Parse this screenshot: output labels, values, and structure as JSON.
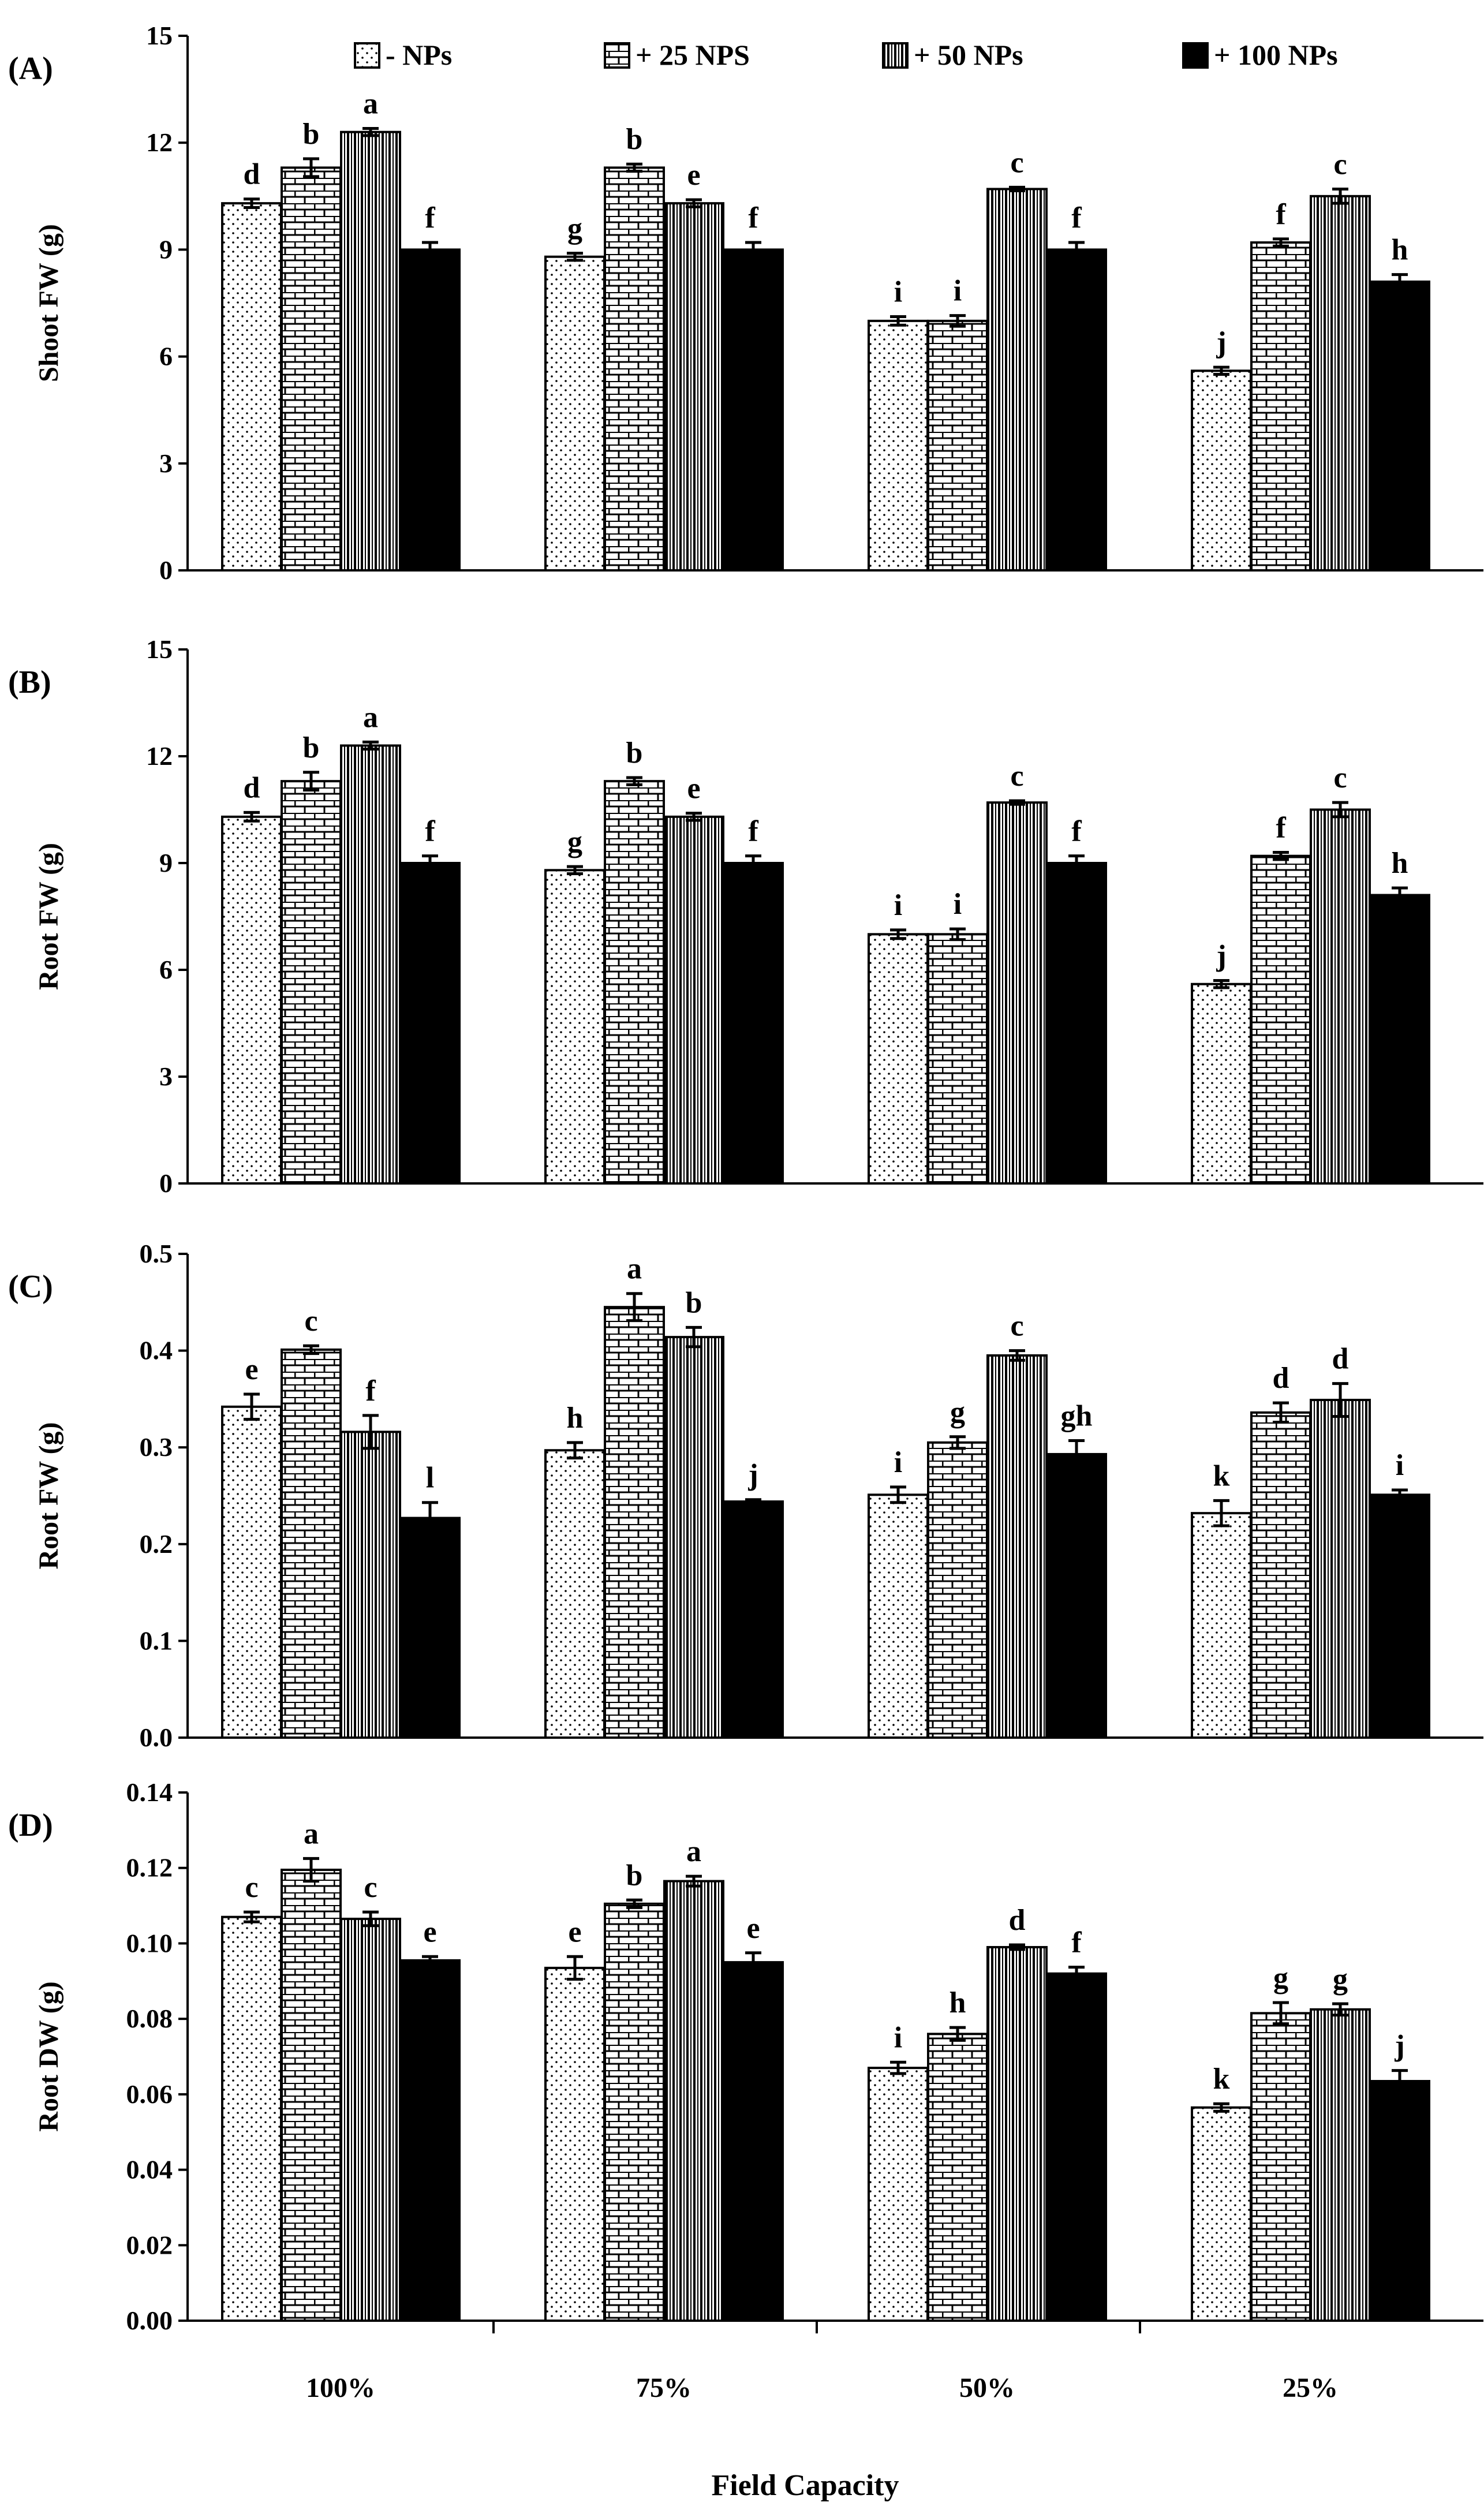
{
  "legend": {
    "items": [
      {
        "label": "- NPs",
        "pattern": "dots"
      },
      {
        "label": "+ 25 NPS",
        "pattern": "bricks"
      },
      {
        "label": "+ 50 NPs",
        "pattern": "vlines"
      },
      {
        "label": "+ 100 NPs",
        "pattern": "solid"
      }
    ]
  },
  "xaxis": {
    "title": "Field Capacity",
    "categories": [
      "100%",
      "75%",
      "50%",
      "25%"
    ]
  },
  "chart_data": [
    {
      "type": "bar",
      "panel": "(A)",
      "ylabel": "Shoot FW (g)",
      "ylim": [
        0,
        15
      ],
      "yticks": [
        "0",
        "3",
        "6",
        "9",
        "12",
        "15"
      ],
      "categories": [
        "100%",
        "75%",
        "50%",
        "25%"
      ],
      "series": [
        {
          "name": "- NPs",
          "values": [
            10.3,
            8.8,
            7.0,
            5.6
          ],
          "errors": [
            0.12,
            0.1,
            0.12,
            0.1
          ],
          "letters": [
            "d",
            "g",
            "i",
            "j"
          ]
        },
        {
          "name": "+ 25 NPS",
          "values": [
            11.3,
            11.3,
            7.0,
            9.2
          ],
          "errors": [
            0.25,
            0.1,
            0.15,
            0.1
          ],
          "letters": [
            "b",
            "b",
            "i",
            "f"
          ]
        },
        {
          "name": "+ 50 NPs",
          "values": [
            12.3,
            10.3,
            10.7,
            10.5
          ],
          "errors": [
            0.1,
            0.1,
            0.05,
            0.2
          ],
          "letters": [
            "a",
            "e",
            "c",
            "c"
          ]
        },
        {
          "name": "+ 100 NPs",
          "values": [
            9.0,
            9.0,
            9.0,
            8.1
          ],
          "errors": [
            0.2,
            0.2,
            0.2,
            0.2
          ],
          "letters": [
            "f",
            "f",
            "f",
            "h"
          ]
        }
      ]
    },
    {
      "type": "bar",
      "panel": "(B)",
      "ylabel": "Root FW (g)",
      "ylim": [
        0,
        15
      ],
      "yticks": [
        "0",
        "3",
        "6",
        "9",
        "12",
        "15"
      ],
      "categories": [
        "100%",
        "75%",
        "50%",
        "25%"
      ],
      "series": [
        {
          "name": "- NPs",
          "values": [
            10.3,
            8.8,
            7.0,
            5.6
          ],
          "errors": [
            0.12,
            0.1,
            0.12,
            0.1
          ],
          "letters": [
            "d",
            "g",
            "i",
            "j"
          ]
        },
        {
          "name": "+ 25 NPS",
          "values": [
            11.3,
            11.3,
            7.0,
            9.2
          ],
          "errors": [
            0.25,
            0.1,
            0.15,
            0.1
          ],
          "letters": [
            "b",
            "b",
            "i",
            "f"
          ]
        },
        {
          "name": "+ 50 NPs",
          "values": [
            12.3,
            10.3,
            10.7,
            10.5
          ],
          "errors": [
            0.1,
            0.1,
            0.05,
            0.2
          ],
          "letters": [
            "a",
            "e",
            "c",
            "c"
          ]
        },
        {
          "name": "+ 100 NPs",
          "values": [
            9.0,
            9.0,
            9.0,
            8.1
          ],
          "errors": [
            0.2,
            0.2,
            0.2,
            0.2
          ],
          "letters": [
            "f",
            "f",
            "f",
            "h"
          ]
        }
      ]
    },
    {
      "type": "bar",
      "panel": "(C)",
      "ylabel": "Root FW (g)",
      "ylim": [
        0,
        0.5
      ],
      "yticks": [
        "0.0",
        "0.1",
        "0.2",
        "0.3",
        "0.4",
        "0.5"
      ],
      "categories": [
        "100%",
        "75%",
        "50%",
        "25%"
      ],
      "series": [
        {
          "name": "- NPs",
          "values": [
            0.342,
            0.297,
            0.251,
            0.232
          ],
          "errors": [
            0.013,
            0.008,
            0.008,
            0.013
          ],
          "letters": [
            "e",
            "h",
            "i",
            "k"
          ]
        },
        {
          "name": "+ 25 NPS",
          "values": [
            0.401,
            0.445,
            0.305,
            0.336
          ],
          "errors": [
            0.004,
            0.014,
            0.006,
            0.01
          ],
          "letters": [
            "c",
            "a",
            "g",
            "d"
          ]
        },
        {
          "name": "+ 50 NPs",
          "values": [
            0.316,
            0.414,
            0.395,
            0.349
          ],
          "errors": [
            0.017,
            0.01,
            0.005,
            0.017
          ],
          "letters": [
            "f",
            "b",
            "c",
            "d"
          ]
        },
        {
          "name": "+ 100 NPs",
          "values": [
            0.227,
            0.244,
            0.293,
            0.251
          ],
          "errors": [
            0.016,
            0.002,
            0.014,
            0.005
          ],
          "letters": [
            "l",
            "j",
            "gh",
            "i"
          ]
        }
      ]
    },
    {
      "type": "bar",
      "panel": "(D)",
      "ylabel": "Root DW (g)",
      "ylim": [
        0,
        0.14
      ],
      "yticks": [
        "0.00",
        "0.02",
        "0.04",
        "0.06",
        "0.08",
        "0.10",
        "0.12",
        "0.14"
      ],
      "categories": [
        "100%",
        "75%",
        "50%",
        "25%"
      ],
      "series": [
        {
          "name": "- NPs",
          "values": [
            0.107,
            0.0935,
            0.067,
            0.0565
          ],
          "errors": [
            0.0013,
            0.003,
            0.0015,
            0.001
          ],
          "letters": [
            "c",
            "e",
            "i",
            "k"
          ]
        },
        {
          "name": "+ 25 NPS",
          "values": [
            0.1195,
            0.1105,
            0.076,
            0.0815
          ],
          "errors": [
            0.003,
            0.001,
            0.0017,
            0.0028
          ],
          "letters": [
            "a",
            "b",
            "h",
            "g"
          ]
        },
        {
          "name": "+ 50 NPs",
          "values": [
            0.1065,
            0.1165,
            0.099,
            0.0825
          ],
          "errors": [
            0.0018,
            0.0013,
            0.0006,
            0.0015
          ],
          "letters": [
            "c",
            "a",
            "d",
            "g"
          ]
        },
        {
          "name": "+ 100 NPs",
          "values": [
            0.0955,
            0.095,
            0.092,
            0.0635
          ],
          "errors": [
            0.001,
            0.0025,
            0.0017,
            0.0028
          ],
          "letters": [
            "e",
            "e",
            "f",
            "j"
          ]
        }
      ]
    }
  ]
}
